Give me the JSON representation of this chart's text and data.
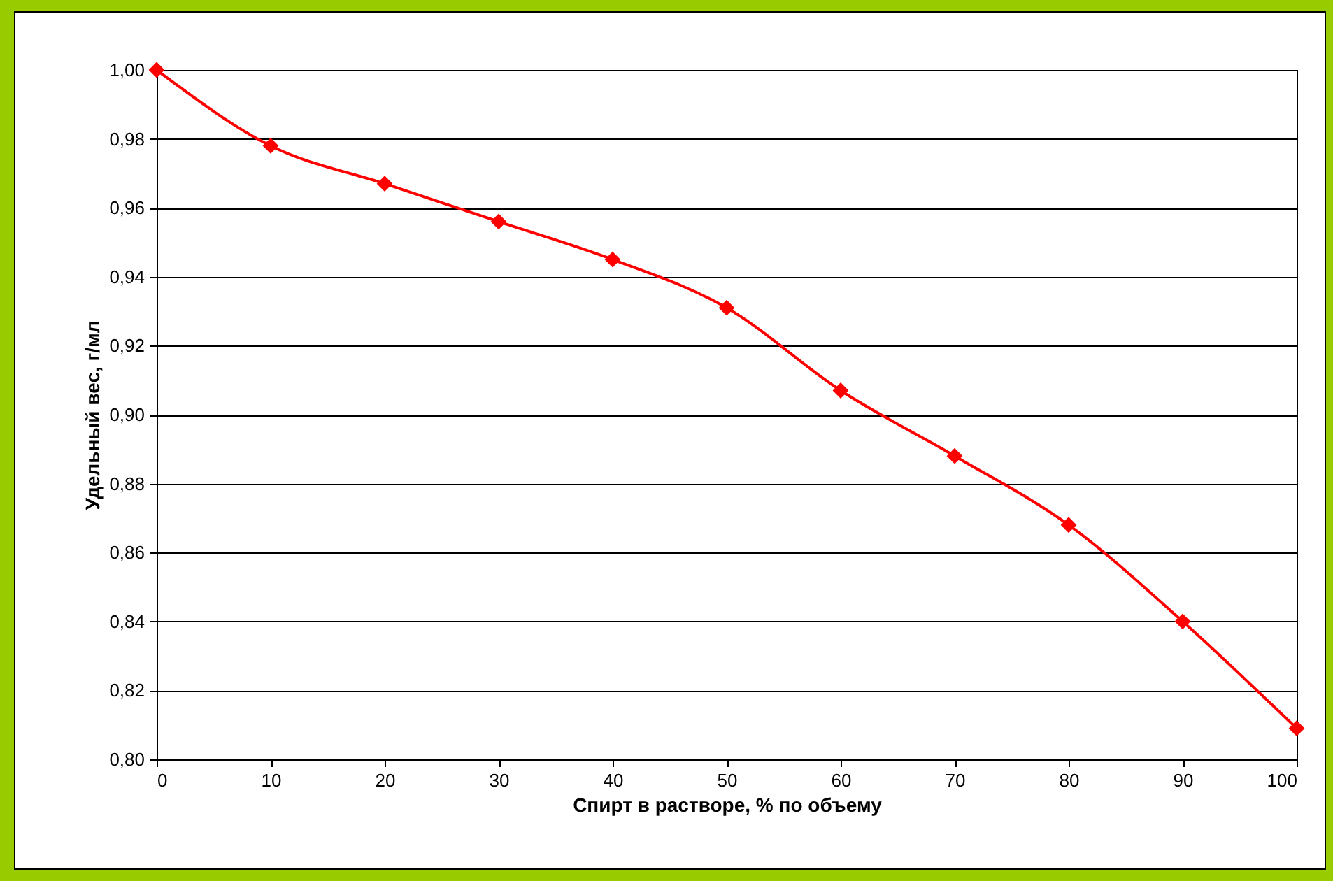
{
  "chart_data": {
    "type": "line",
    "xlabel": "Спирт в растворе,  % по объему",
    "ylabel": "Удельный вес, г/мл",
    "x": [
      0,
      10,
      20,
      30,
      40,
      50,
      60,
      70,
      80,
      90,
      100
    ],
    "series": [
      {
        "color": "#ff0000",
        "values": [
          1.0,
          0.978,
          0.967,
          0.956,
          0.945,
          0.931,
          0.907,
          0.888,
          0.868,
          0.84,
          0.809
        ]
      }
    ],
    "xlim": [
      0,
      100
    ],
    "xticks": [
      0,
      10,
      20,
      30,
      40,
      50,
      60,
      70,
      80,
      90,
      100
    ],
    "ylim": [
      0.8,
      1.0
    ],
    "yticks": [
      {
        "value": 0.8,
        "label": "0,80"
      },
      {
        "value": 0.82,
        "label": "0,82"
      },
      {
        "value": 0.84,
        "label": "0,84"
      },
      {
        "value": 0.86,
        "label": "0,86"
      },
      {
        "value": 0.88,
        "label": "0,88"
      },
      {
        "value": 0.9,
        "label": "0,90"
      },
      {
        "value": 0.92,
        "label": "0,92"
      },
      {
        "value": 0.94,
        "label": "0,94"
      },
      {
        "value": 0.96,
        "label": "0,96"
      },
      {
        "value": 0.98,
        "label": "0,98"
      },
      {
        "value": 1.0,
        "label": "1,00"
      }
    ],
    "grid": "y",
    "marker": "diamond",
    "line_style": "solid"
  }
}
